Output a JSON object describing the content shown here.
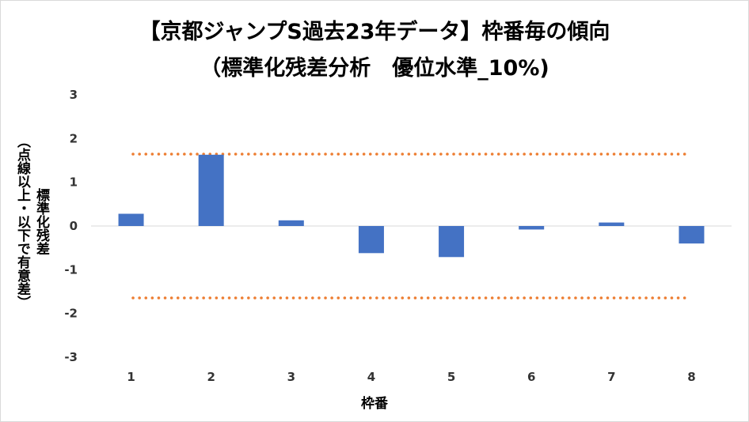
{
  "chart_data": {
    "type": "bar",
    "title_line1": "【京都ジャンプS過去23年データ】枠番毎の傾向",
    "title_line2": "（標準化残差分析　優位水準_10%)",
    "xlabel": "枠番",
    "ylabel_main": "標準化残差",
    "ylabel_sub": "（点線以上・以下で有意差）",
    "categories": [
      "1",
      "2",
      "3",
      "4",
      "5",
      "6",
      "7",
      "8"
    ],
    "values": [
      0.28,
      1.63,
      0.13,
      -0.62,
      -0.71,
      -0.08,
      0.08,
      -0.4
    ],
    "ylim": [
      -3,
      3
    ],
    "yticks": [
      3,
      2,
      1,
      0,
      -1,
      -2,
      -3
    ],
    "thresholds": [
      1.645,
      -1.645
    ],
    "bar_color": "#4472c4",
    "threshold_color": "#ed7d31",
    "grid": false
  }
}
